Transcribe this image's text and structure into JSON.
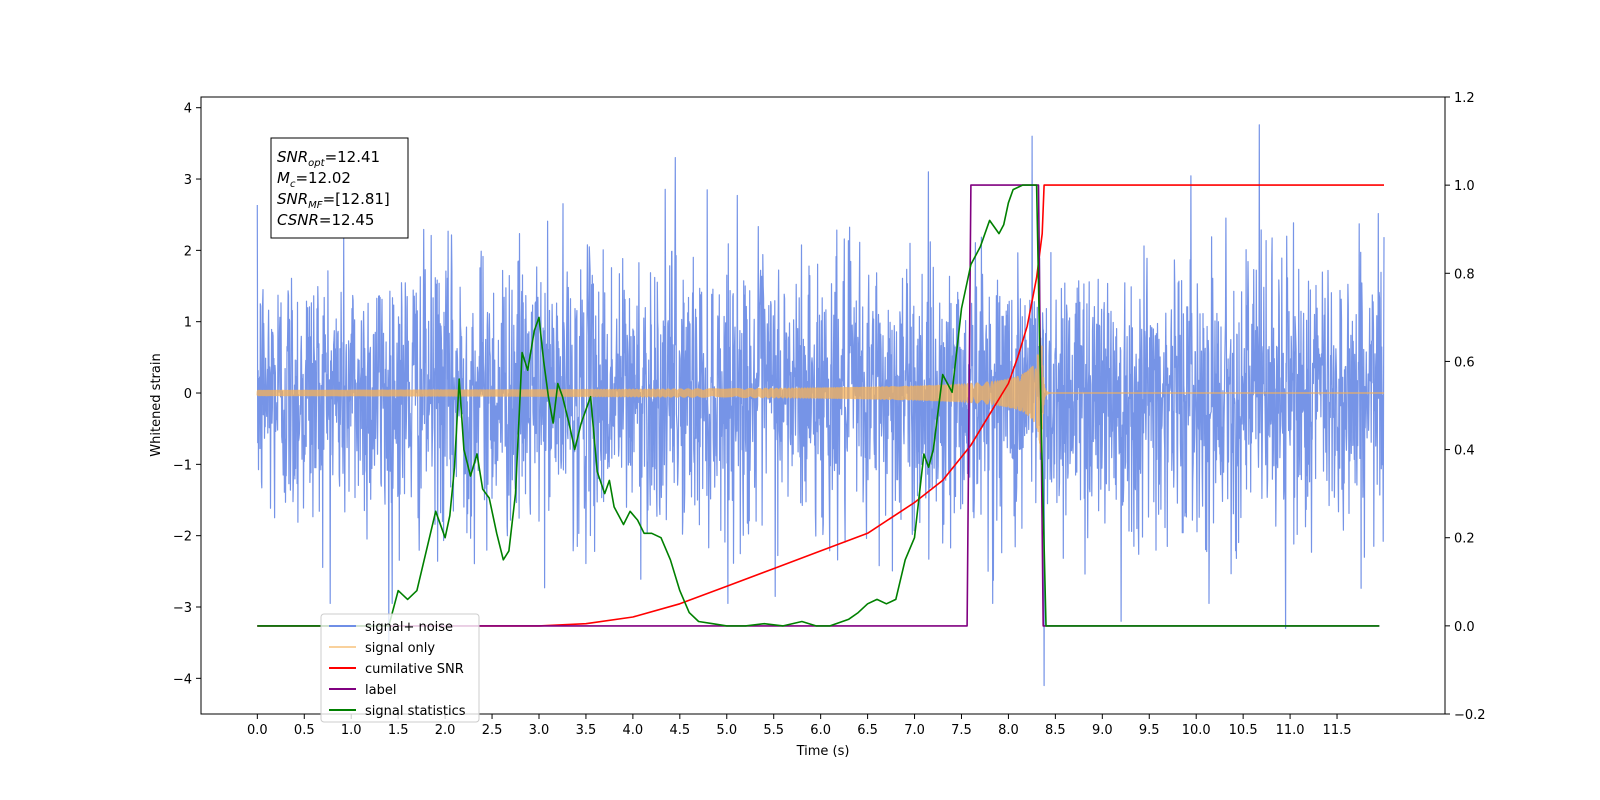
{
  "chart_data": {
    "type": "line",
    "xlabel": "Time (s)",
    "ylabel": "Whitened strain",
    "xlim": [
      -0.6,
      12.65
    ],
    "ylim_left": [
      -4.5,
      4.15
    ],
    "ylim_right": [
      -0.2,
      1.2
    ],
    "x_ticks": [
      0.0,
      0.5,
      1.0,
      1.5,
      2.0,
      2.5,
      3.0,
      3.5,
      4.0,
      4.5,
      5.0,
      5.5,
      6.0,
      6.5,
      7.0,
      7.5,
      8.0,
      8.5,
      9.0,
      9.5,
      10.0,
      10.5,
      11.0,
      11.5
    ],
    "x_tick_labels": [
      "0.0",
      "0.5",
      "1.0",
      "1.5",
      "2.0",
      "2.5",
      "3.0",
      "3.5",
      "4.0",
      "4.5",
      "5.0",
      "5.5",
      "6.0",
      "6.5",
      "7.0",
      "7.5",
      "8.0",
      "8.5",
      "9.0",
      "9.5",
      "10.0",
      "10.5",
      "11.0",
      "11.5"
    ],
    "y_left_ticks": [
      -4,
      -3,
      -2,
      -1,
      0,
      1,
      2,
      3,
      4
    ],
    "y_left_tick_labels": [
      "−4",
      "−3",
      "−2",
      "−1",
      "0",
      "1",
      "2",
      "3",
      "4"
    ],
    "y_right_ticks": [
      -0.2,
      0.0,
      0.2,
      0.4,
      0.6,
      0.8,
      1.0,
      1.2
    ],
    "y_right_tick_labels": [
      "−0.2",
      "0.0",
      "0.2",
      "0.4",
      "0.6",
      "0.8",
      "1.0",
      "1.2"
    ],
    "grid": false,
    "legend_position": "lower-left",
    "info_box": {
      "lines": [
        {
          "main": "SNR",
          "sub": "opt",
          "rest": "=12.41"
        },
        {
          "main": "M",
          "sub": "c",
          "rest": "=12.02"
        },
        {
          "main": "SNR",
          "sub": "MF",
          "rest": "=[12.81]"
        },
        {
          "main": "CSNR",
          "sub": "",
          "rest": "=12.45"
        }
      ]
    },
    "series": [
      {
        "name": "signal+ noise",
        "axis": "left",
        "color": "#6f8ee6",
        "kind": "noise",
        "x_range": [
          0.0,
          12.0
        ],
        "std": 0.95,
        "spikes": [
          [
            10.67,
            3.76
          ],
          [
            8.25,
            3.6
          ],
          [
            8.38,
            -4.1
          ],
          [
            10.95,
            -3.3
          ],
          [
            9.2,
            -3.2
          ],
          [
            1.4,
            -3.5
          ],
          [
            4.45,
            3.3
          ]
        ]
      },
      {
        "name": "signal only",
        "axis": "left",
        "color": "#f5b25a",
        "kind": "chirp",
        "x_range": [
          0.0,
          12.0
        ],
        "merger_time": 8.35,
        "peak_amplitude": 0.98
      },
      {
        "name": "cumilative SNR",
        "axis": "right",
        "color": "#ff0000",
        "x": [
          0.0,
          3.0,
          3.5,
          4.0,
          4.5,
          5.0,
          5.5,
          6.0,
          6.5,
          7.0,
          7.3,
          7.6,
          7.8,
          8.0,
          8.1,
          8.2,
          8.3,
          8.36,
          8.38,
          12.0
        ],
        "y": [
          0.0,
          0.0,
          0.005,
          0.02,
          0.05,
          0.09,
          0.13,
          0.17,
          0.21,
          0.28,
          0.33,
          0.41,
          0.48,
          0.55,
          0.61,
          0.68,
          0.79,
          0.89,
          1.0,
          1.0
        ]
      },
      {
        "name": "label",
        "axis": "right",
        "color": "#800080",
        "x": [
          0.0,
          7.56,
          7.6,
          8.32,
          8.37,
          11.95
        ],
        "y": [
          0.0,
          0.0,
          1.0,
          1.0,
          0.0,
          0.0
        ]
      },
      {
        "name": "signal statistics",
        "axis": "right",
        "color": "#008000",
        "x": [
          0.0,
          1.4,
          1.5,
          1.6,
          1.7,
          1.8,
          1.9,
          2.0,
          2.05,
          2.1,
          2.15,
          2.2,
          2.27,
          2.34,
          2.4,
          2.47,
          2.55,
          2.62,
          2.68,
          2.75,
          2.82,
          2.88,
          2.95,
          3.0,
          3.05,
          3.1,
          3.15,
          3.2,
          3.25,
          3.32,
          3.38,
          3.45,
          3.5,
          3.55,
          3.62,
          3.7,
          3.75,
          3.8,
          3.9,
          3.97,
          4.05,
          4.12,
          4.2,
          4.3,
          4.4,
          4.5,
          4.6,
          4.7,
          4.85,
          5.0,
          5.2,
          5.4,
          5.6,
          5.8,
          5.95,
          6.1,
          6.3,
          6.4,
          6.5,
          6.6,
          6.7,
          6.8,
          6.9,
          7.0,
          7.1,
          7.15,
          7.2,
          7.3,
          7.4,
          7.5,
          7.6,
          7.7,
          7.8,
          7.9,
          7.95,
          8.0,
          8.05,
          8.15,
          8.3,
          8.35,
          8.4,
          11.95
        ],
        "y": [
          0.0,
          0.0,
          0.08,
          0.06,
          0.08,
          0.17,
          0.26,
          0.2,
          0.25,
          0.36,
          0.56,
          0.4,
          0.34,
          0.39,
          0.31,
          0.29,
          0.21,
          0.15,
          0.17,
          0.3,
          0.62,
          0.58,
          0.67,
          0.7,
          0.6,
          0.52,
          0.46,
          0.55,
          0.52,
          0.46,
          0.4,
          0.46,
          0.49,
          0.52,
          0.35,
          0.3,
          0.33,
          0.27,
          0.23,
          0.26,
          0.24,
          0.21,
          0.21,
          0.2,
          0.15,
          0.08,
          0.03,
          0.01,
          0.005,
          0.0,
          0.0,
          0.005,
          0.0,
          0.01,
          0.0,
          0.0,
          0.015,
          0.03,
          0.05,
          0.06,
          0.05,
          0.06,
          0.15,
          0.2,
          0.39,
          0.36,
          0.4,
          0.57,
          0.53,
          0.72,
          0.82,
          0.86,
          0.92,
          0.89,
          0.91,
          0.96,
          0.99,
          1.0,
          1.0,
          0.45,
          0.0,
          0.0
        ]
      }
    ]
  }
}
